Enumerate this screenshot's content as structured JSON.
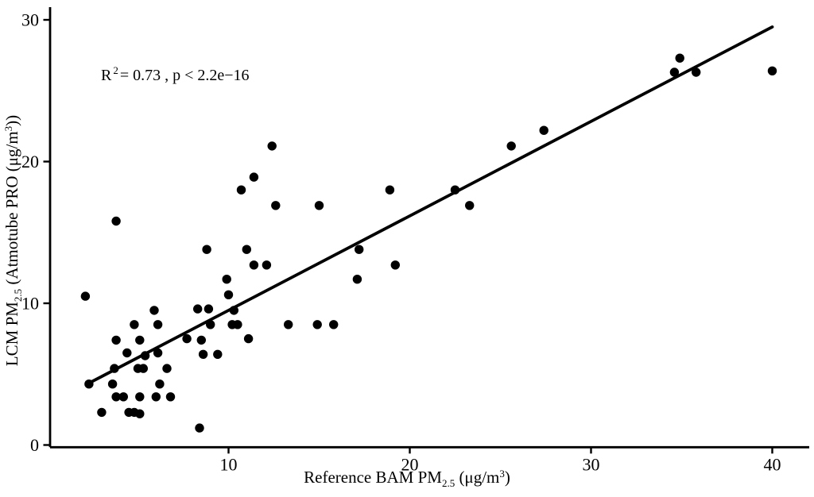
{
  "chart_data": {
    "type": "scatter",
    "title": "",
    "xlabel": "Reference BAM PM2.5 (μg/m³)",
    "ylabel": "LCM PM2.5 (Atmotube PRO (μg/m³))",
    "xlabel_parts": {
      "prefix": "Reference BAM PM",
      "sub": "2.5",
      "mid": " (μg/m",
      "sup": "3",
      "suffix": ")"
    },
    "ylabel_parts": {
      "prefix": "LCM PM",
      "sub": "2.5",
      "mid": " (Atmotube PRO (μg/m",
      "sup": "3",
      "suffix": "))"
    },
    "annotation": "R² = 0.73 , p < 2.2e−16",
    "annotation_parts": {
      "r": "R",
      "sup": "2",
      "rest": "= 0.73 , p < 2.2e−16"
    },
    "x_ticks": [
      10,
      20,
      30,
      40
    ],
    "y_ticks": [
      0,
      10,
      20,
      30
    ],
    "xlim": [
      0.2,
      41.9
    ],
    "ylim": [
      0,
      30.9
    ],
    "grid": false,
    "legend": "none",
    "background_color": "#ffffff",
    "point_color": "#000000",
    "line_color": "#000000",
    "axis_color": "#000000",
    "points": [
      [
        2.1,
        10.5
      ],
      [
        2.3,
        4.3
      ],
      [
        3.0,
        2.3
      ],
      [
        3.6,
        4.3
      ],
      [
        3.7,
        5.4
      ],
      [
        3.8,
        7.4
      ],
      [
        3.8,
        15.8
      ],
      [
        3.8,
        3.4
      ],
      [
        4.2,
        3.4
      ],
      [
        4.4,
        6.5
      ],
      [
        4.5,
        2.3
      ],
      [
        4.8,
        2.3
      ],
      [
        4.8,
        8.5
      ],
      [
        5.0,
        5.4
      ],
      [
        5.1,
        7.4
      ],
      [
        5.1,
        3.4
      ],
      [
        5.1,
        2.2
      ],
      [
        5.3,
        5.4
      ],
      [
        5.4,
        6.3
      ],
      [
        5.9,
        9.5
      ],
      [
        6.0,
        3.4
      ],
      [
        6.1,
        6.5
      ],
      [
        6.1,
        8.5
      ],
      [
        6.2,
        4.3
      ],
      [
        6.6,
        5.4
      ],
      [
        6.8,
        3.4
      ],
      [
        7.7,
        7.5
      ],
      [
        8.3,
        9.6
      ],
      [
        8.4,
        1.2
      ],
      [
        8.5,
        7.4
      ],
      [
        8.6,
        6.4
      ],
      [
        8.8,
        13.8
      ],
      [
        8.9,
        9.6
      ],
      [
        9.0,
        8.5
      ],
      [
        9.4,
        6.4
      ],
      [
        9.9,
        11.7
      ],
      [
        10.0,
        10.6
      ],
      [
        10.2,
        8.5
      ],
      [
        10.3,
        9.5
      ],
      [
        10.5,
        8.5
      ],
      [
        10.7,
        18.0
      ],
      [
        11.0,
        13.8
      ],
      [
        11.1,
        7.5
      ],
      [
        11.4,
        12.7
      ],
      [
        11.4,
        18.9
      ],
      [
        12.1,
        12.7
      ],
      [
        12.4,
        21.1
      ],
      [
        12.6,
        16.9
      ],
      [
        13.3,
        8.5
      ],
      [
        14.9,
        8.5
      ],
      [
        15.0,
        16.9
      ],
      [
        15.8,
        8.5
      ],
      [
        17.1,
        11.7
      ],
      [
        17.2,
        13.8
      ],
      [
        18.9,
        18.0
      ],
      [
        19.2,
        12.7
      ],
      [
        22.5,
        18.0
      ],
      [
        23.3,
        16.9
      ],
      [
        25.6,
        21.1
      ],
      [
        27.4,
        22.2
      ],
      [
        34.6,
        26.3
      ],
      [
        34.9,
        27.3
      ],
      [
        35.8,
        26.3
      ],
      [
        40.0,
        26.4
      ]
    ],
    "regression_line": {
      "x1": 2.2,
      "y1": 4.3,
      "x2": 40.0,
      "y2": 29.5
    }
  }
}
